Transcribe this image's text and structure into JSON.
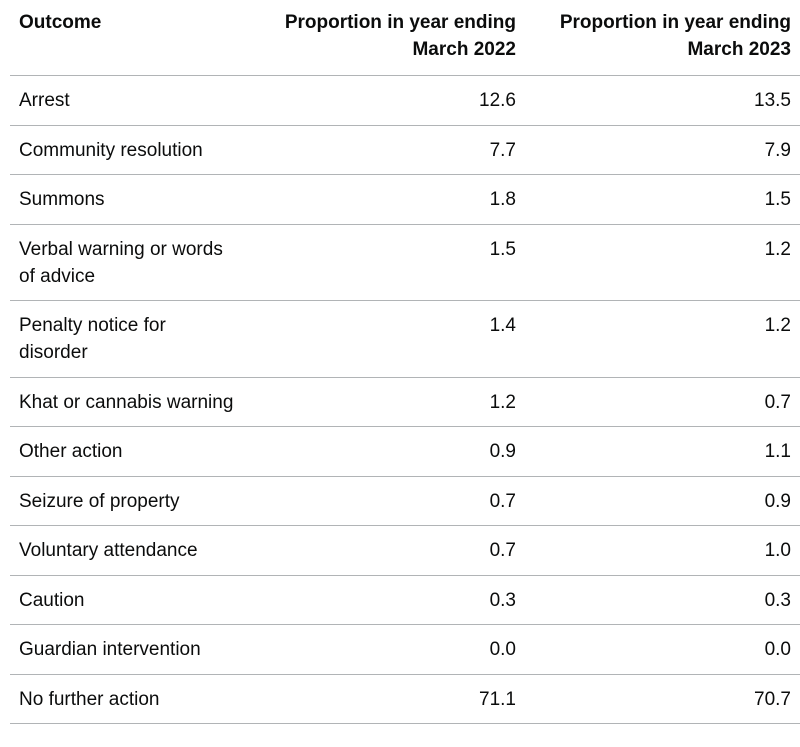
{
  "table": {
    "headers": {
      "outcome": "Outcome",
      "year1_line1": "Proportion in year ending",
      "year1_line2": "March 2022",
      "year2_line1": "Proportion in year ending",
      "year2_line2": "March 2023"
    },
    "rows": [
      {
        "outcome_line1": "Arrest",
        "outcome_line2": "",
        "y2022": "12.6",
        "y2023": "13.5"
      },
      {
        "outcome_line1": "Community resolution",
        "outcome_line2": "",
        "y2022": "7.7",
        "y2023": "7.9"
      },
      {
        "outcome_line1": "Summons",
        "outcome_line2": "",
        "y2022": "1.8",
        "y2023": "1.5"
      },
      {
        "outcome_line1": "Verbal warning or words",
        "outcome_line2": "of advice",
        "y2022": "1.5",
        "y2023": "1.2"
      },
      {
        "outcome_line1": "Penalty notice for",
        "outcome_line2": "disorder",
        "y2022": "1.4",
        "y2023": "1.2"
      },
      {
        "outcome_line1": "Khat or cannabis warning",
        "outcome_line2": "",
        "y2022": "1.2",
        "y2023": "0.7"
      },
      {
        "outcome_line1": "Other action",
        "outcome_line2": "",
        "y2022": "0.9",
        "y2023": "1.1"
      },
      {
        "outcome_line1": "Seizure of property",
        "outcome_line2": "",
        "y2022": "0.7",
        "y2023": "0.9"
      },
      {
        "outcome_line1": "Voluntary attendance",
        "outcome_line2": "",
        "y2022": "0.7",
        "y2023": "1.0"
      },
      {
        "outcome_line1": "Caution",
        "outcome_line2": "",
        "y2022": "0.3",
        "y2023": "0.3"
      },
      {
        "outcome_line1": "Guardian intervention",
        "outcome_line2": "",
        "y2022": "0.0",
        "y2023": "0.0"
      },
      {
        "outcome_line1": "No further action",
        "outcome_line2": "",
        "y2022": "71.1",
        "y2023": "70.7"
      }
    ]
  }
}
